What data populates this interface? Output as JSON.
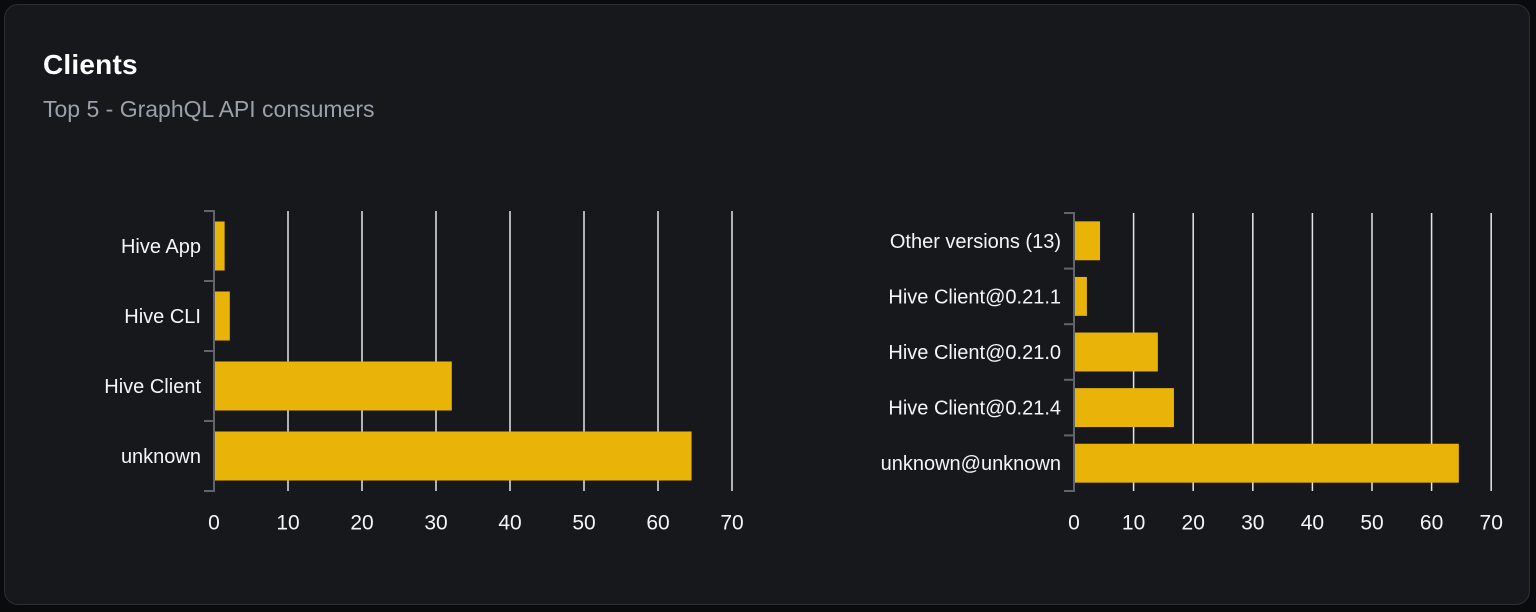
{
  "card": {
    "title": "Clients",
    "subtitle": "Top 5 - GraphQL API consumers"
  },
  "colors": {
    "page_bg": "#0a0b0d",
    "card_bg": "#16181c",
    "card_border": "#2b2e34",
    "title": "#ffffff",
    "subtitle": "#9aa1ac",
    "bar": "#eab308",
    "grid": "#e3e6ea",
    "axis": "#60646c",
    "text": "#f4f5f6"
  },
  "chart_data": [
    {
      "name": "clients-by-name",
      "type": "bar",
      "orientation": "horizontal",
      "title": "",
      "xlabel": "",
      "ylabel": "",
      "categories": [
        "Hive App",
        "Hive CLI",
        "Hive Client",
        "unknown"
      ],
      "values": [
        1.3,
        2,
        32,
        64.4
      ],
      "xlim": [
        0,
        70
      ],
      "xticks": [
        0,
        10,
        20,
        30,
        40,
        50,
        60,
        70
      ],
      "grid": true,
      "legend": false,
      "bar_color": "#eab308"
    },
    {
      "name": "clients-by-version",
      "type": "bar",
      "orientation": "horizontal",
      "title": "",
      "xlabel": "",
      "ylabel": "",
      "categories": [
        "Other versions (13)",
        "Hive Client@0.21.1",
        "Hive Client@0.21.0",
        "Hive Client@0.21.4",
        "unknown@unknown"
      ],
      "values": [
        4.2,
        2,
        13.9,
        16.6,
        64.4
      ],
      "xlim": [
        0,
        70
      ],
      "xticks": [
        0,
        10,
        20,
        30,
        40,
        50,
        60,
        70
      ],
      "grid": true,
      "legend": false,
      "bar_color": "#eab308"
    }
  ]
}
